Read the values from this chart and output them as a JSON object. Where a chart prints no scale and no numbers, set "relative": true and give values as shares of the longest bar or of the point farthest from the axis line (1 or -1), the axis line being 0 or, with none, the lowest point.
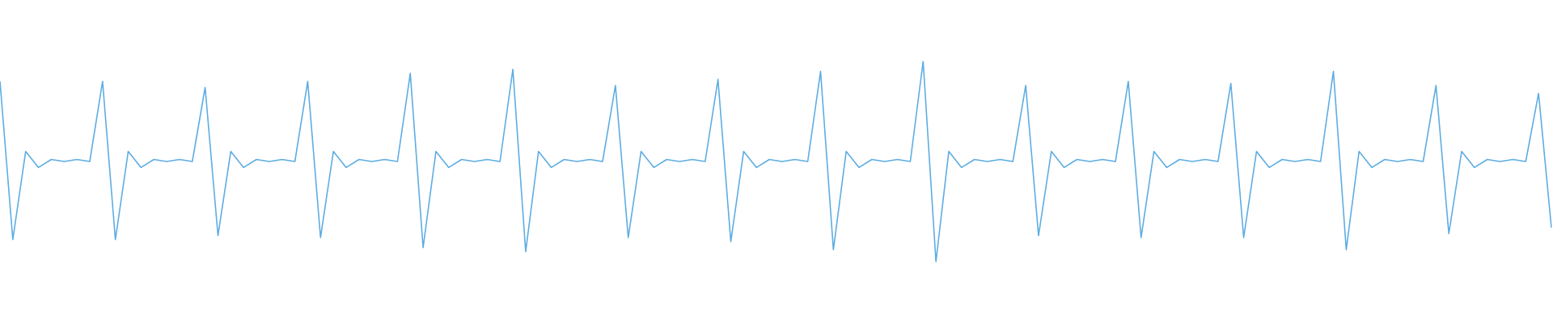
{
  "chart_data": {
    "type": "line",
    "relative": true,
    "color": "#5dade2",
    "categories": [
      null,
      null,
      null,
      null,
      null,
      null,
      null,
      null,
      null,
      null,
      null,
      null,
      null,
      null,
      null,
      null,
      null,
      null,
      null,
      null,
      null,
      null,
      null,
      null,
      null,
      null,
      null,
      null,
      null,
      null,
      null,
      null,
      null,
      null,
      null,
      null,
      null,
      null,
      null,
      null,
      null,
      null,
      null,
      null,
      null,
      null,
      null,
      null,
      null,
      null,
      null,
      null,
      null,
      null,
      null,
      null,
      null,
      null,
      null,
      null,
      null,
      null,
      null,
      null,
      null,
      null,
      null,
      null,
      null,
      null,
      null,
      null,
      null,
      null,
      null,
      null,
      null,
      null,
      null,
      null,
      null,
      null,
      null,
      null,
      null,
      null,
      null,
      null,
      null,
      null,
      null,
      null,
      null,
      null,
      null,
      null,
      null,
      null,
      null,
      null,
      null,
      null,
      null,
      null,
      null,
      null,
      null,
      null,
      null,
      null,
      null,
      null,
      null,
      null,
      null,
      null,
      null,
      null,
      null,
      null,
      null,
      null
    ],
    "values": [
      0.9,
      0.11,
      0.55,
      0.47,
      0.51,
      0.5,
      0.51,
      0.5,
      0.9,
      0.11,
      0.55,
      0.47,
      0.51,
      0.5,
      0.51,
      0.5,
      0.87,
      0.13,
      0.55,
      0.47,
      0.51,
      0.5,
      0.51,
      0.5,
      0.9,
      0.12,
      0.55,
      0.47,
      0.51,
      0.5,
      0.51,
      0.5,
      0.94,
      0.07,
      0.55,
      0.47,
      0.51,
      0.5,
      0.51,
      0.5,
      0.96,
      0.05,
      0.55,
      0.47,
      0.51,
      0.5,
      0.51,
      0.5,
      0.88,
      0.12,
      0.55,
      0.47,
      0.51,
      0.5,
      0.51,
      0.5,
      0.91,
      0.1,
      0.55,
      0.47,
      0.51,
      0.5,
      0.51,
      0.5,
      0.95,
      0.06,
      0.55,
      0.47,
      0.51,
      0.5,
      0.51,
      0.5,
      1.0,
      0.0,
      0.55,
      0.47,
      0.51,
      0.5,
      0.51,
      0.5,
      0.88,
      0.13,
      0.55,
      0.47,
      0.51,
      0.5,
      0.51,
      0.5,
      0.9,
      0.12,
      0.55,
      0.47,
      0.51,
      0.5,
      0.51,
      0.5,
      0.89,
      0.12,
      0.55,
      0.47,
      0.51,
      0.5,
      0.51,
      0.5,
      0.95,
      0.06,
      0.55,
      0.47,
      0.51,
      0.5,
      0.51,
      0.5,
      0.88,
      0.14,
      0.55,
      0.47,
      0.51,
      0.5,
      0.51,
      0.5,
      0.84,
      0.17
    ]
  }
}
